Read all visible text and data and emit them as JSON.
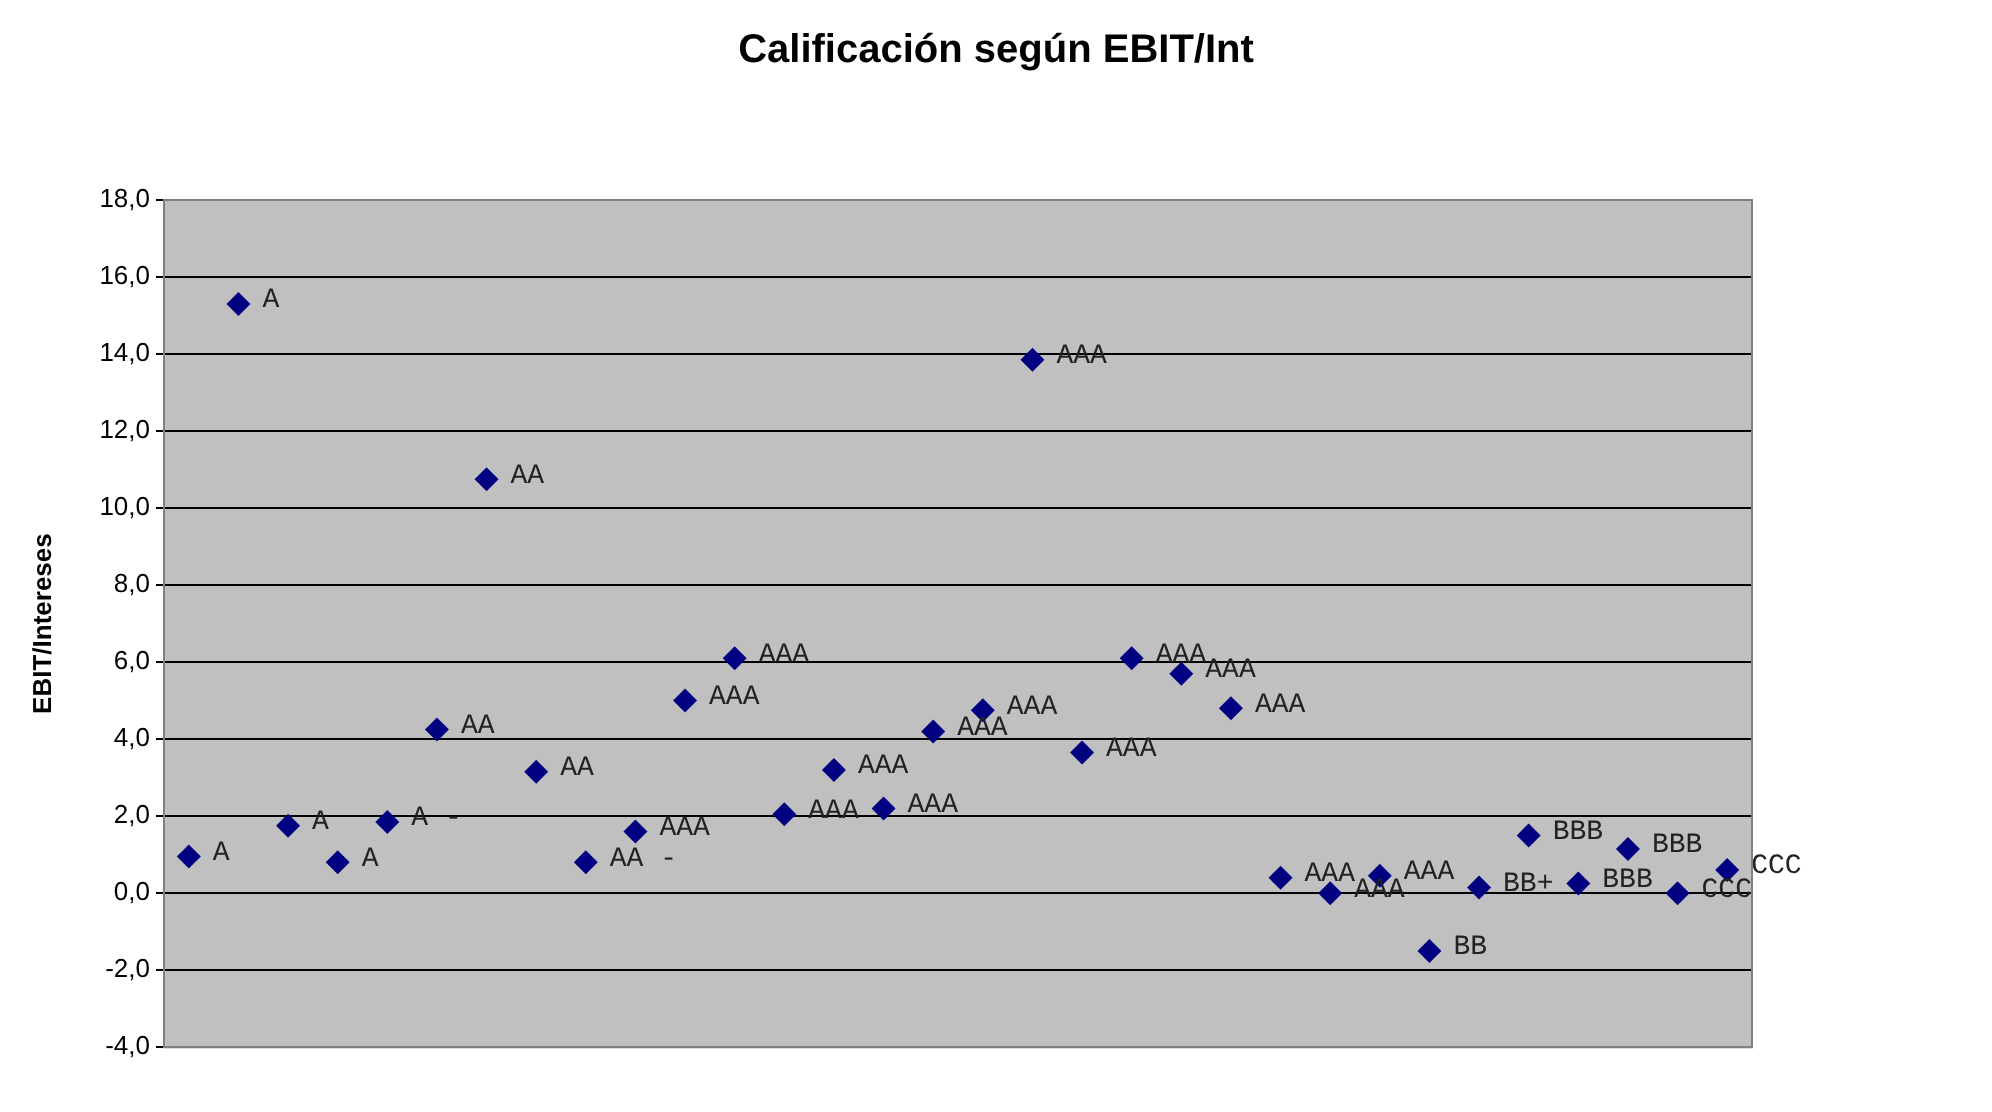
{
  "chart_data": {
    "type": "scatter",
    "title": "Calificación según EBIT/Int",
    "ylabel": "EBIT/Intereses",
    "categories": [
      null,
      null,
      null,
      null,
      null,
      null,
      null,
      null,
      null,
      null,
      null,
      null,
      null,
      null,
      null,
      null,
      null,
      null,
      null,
      null,
      null,
      null,
      null,
      null,
      null,
      null,
      null,
      null,
      null,
      null,
      null,
      null
    ],
    "series": [
      {
        "color": "#000080",
        "values": [
          0.95,
          15.3,
          1.75,
          0.8,
          1.85,
          4.25,
          10.75,
          3.15,
          0.8,
          1.6,
          5.0,
          6.1,
          2.05,
          3.2,
          2.2,
          4.2,
          4.75,
          13.85,
          3.65,
          6.1,
          5.7,
          4.8,
          0.4,
          0.0,
          0.45,
          -1.5,
          0.15,
          1.5,
          0.25,
          1.15,
          0.0,
          0.6
        ],
        "value_labels": [
          "A",
          "A",
          "A",
          "A",
          "A -",
          "AA",
          "AA",
          "AA",
          "AA -",
          "AAA",
          "AAA",
          "AAA",
          "AAA",
          "AAA",
          "AAA",
          "AAA",
          "AAA",
          "AAA",
          "AAA",
          "AAA",
          "AAA",
          "AAA",
          "AAA",
          "AAA",
          "AAA",
          "BB",
          "BB+",
          "BBB",
          "BBB",
          "BBB",
          "CCC",
          "CCC"
        ]
      }
    ],
    "ylim": [
      -4,
      18
    ],
    "yticks": [
      {
        "value": -4,
        "label": "-4,0"
      },
      {
        "value": -2,
        "label": "-2,0"
      },
      {
        "value": 0,
        "label": "0,0"
      },
      {
        "value": 2,
        "label": "2,0"
      },
      {
        "value": 4,
        "label": "4,0"
      },
      {
        "value": 6,
        "label": "6,0"
      },
      {
        "value": 8,
        "label": "8,0"
      },
      {
        "value": 10,
        "label": "10,0"
      },
      {
        "value": 12,
        "label": "12,0"
      },
      {
        "value": 14,
        "label": "14,0"
      },
      {
        "value": 16,
        "label": "16,0"
      },
      {
        "value": 18,
        "label": "18,0"
      }
    ],
    "grid": "y",
    "legend": false,
    "marker": "diamond"
  }
}
